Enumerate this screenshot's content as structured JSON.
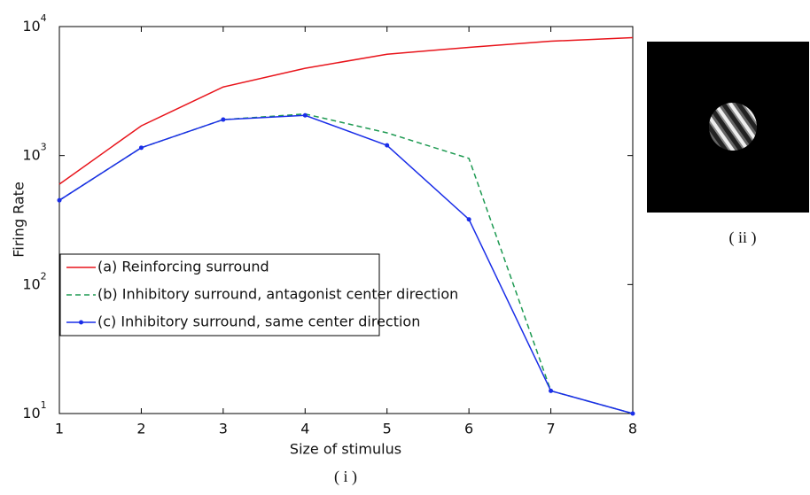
{
  "chart_data": {
    "type": "line",
    "y_scale": "log",
    "x_label": "Size of stimulus",
    "y_label": "Firing Rate",
    "caption": "( i )",
    "x": [
      1,
      2,
      3,
      4,
      5,
      6,
      7,
      8
    ],
    "xlim": [
      1,
      8
    ],
    "xticks": [
      1,
      2,
      3,
      4,
      5,
      6,
      7,
      8
    ],
    "ylim": [
      10,
      10000
    ],
    "yticks": [
      {
        "value": 10,
        "label": "10",
        "sup": "1"
      },
      {
        "value": 100,
        "label": "10",
        "sup": "2"
      },
      {
        "value": 1000,
        "label": "10",
        "sup": "3"
      },
      {
        "value": 10000,
        "label": "10",
        "sup": "4"
      }
    ],
    "grid": false,
    "legend": "lower left",
    "series": [
      {
        "name": "(a) Reinforcing surround",
        "color": "#e8141b",
        "style": "solid",
        "marker": false,
        "values": [
          600,
          1700,
          3400,
          4750,
          6100,
          6900,
          7700,
          8200
        ]
      },
      {
        "name": "(b) Inhibitory surround, antagonist center direction",
        "color": "#1e9a52",
        "style": "dashed",
        "marker": false,
        "values": [
          450,
          1150,
          1900,
          2100,
          1500,
          950,
          15,
          10
        ]
      },
      {
        "name": "(c) Inhibitory surround, same center direction",
        "color": "#1a2ee8",
        "style": "solid",
        "marker": true,
        "values": [
          450,
          1150,
          1900,
          2050,
          1200,
          320,
          15,
          10
        ]
      }
    ]
  },
  "image_panel": {
    "caption": "( ii )"
  }
}
